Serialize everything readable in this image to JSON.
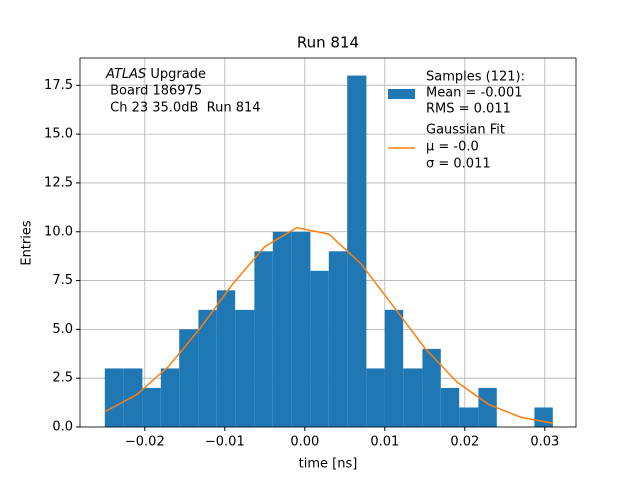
{
  "chart_data": {
    "type": "histogram",
    "title": "Run 814",
    "xlabel": "time [ns]",
    "ylabel": "Entries",
    "bins": [
      -0.025,
      -0.0227,
      -0.0203,
      -0.018,
      -0.0157,
      -0.0133,
      -0.011,
      -0.0087,
      -0.0063,
      -0.004,
      -0.0017,
      0.0007,
      0.003,
      0.0053,
      0.0077,
      0.01,
      0.0123,
      0.0147,
      0.017,
      0.0193,
      0.0217,
      0.024,
      0.0263,
      0.0287,
      0.031
    ],
    "counts": [
      3,
      3,
      2,
      3,
      5,
      6,
      7,
      6,
      9,
      10,
      10,
      8,
      9,
      18,
      3,
      6,
      3,
      4,
      2,
      1,
      2,
      0,
      0,
      1
    ],
    "hist_name": "Samples (121):",
    "hist_stats": [
      "Mean = -0.001",
      "RMS = 0.011"
    ],
    "color": "#1f77b4",
    "fit": {
      "name": "Gaussian Fit",
      "stats": [
        "μ = -0.0",
        "σ = 0.011"
      ],
      "color": "#ff7f0e",
      "x": [
        -0.025,
        -0.021,
        -0.017,
        -0.013,
        -0.009,
        -0.005,
        -0.001,
        0.003,
        0.007,
        0.011,
        0.015,
        0.019,
        0.023,
        0.027,
        0.031
      ],
      "values": [
        0.78,
        1.66,
        3.11,
        5.1,
        7.33,
        9.24,
        10.21,
        9.88,
        8.37,
        6.22,
        4.04,
        2.31,
        1.15,
        0.5,
        0.19
      ]
    },
    "annotation": {
      "atlas": "ATLAS",
      "lines": [
        " Upgrade",
        " Board 186975",
        " Ch 23 35.0dB  Run 814"
      ]
    },
    "xlim": [
      -0.0281,
      0.0339
    ],
    "ylim": [
      0,
      18.9
    ],
    "xticks": [
      {
        "value": -0.02,
        "label": "−0.02"
      },
      {
        "value": -0.01,
        "label": "−0.01"
      },
      {
        "value": 0,
        "label": "0.00"
      },
      {
        "value": 0.01,
        "label": "0.01"
      },
      {
        "value": 0.02,
        "label": "0.02"
      },
      {
        "value": 0.03,
        "label": "0.03"
      }
    ],
    "yticks": [
      {
        "value": 0,
        "label": "0.0"
      },
      2.5,
      {
        "value": 5,
        "label": "5.0"
      },
      7.5,
      {
        "value": 10,
        "label": "10.0"
      },
      12.5,
      {
        "value": 15,
        "label": "15.0"
      },
      17.5
    ],
    "grid": true
  }
}
